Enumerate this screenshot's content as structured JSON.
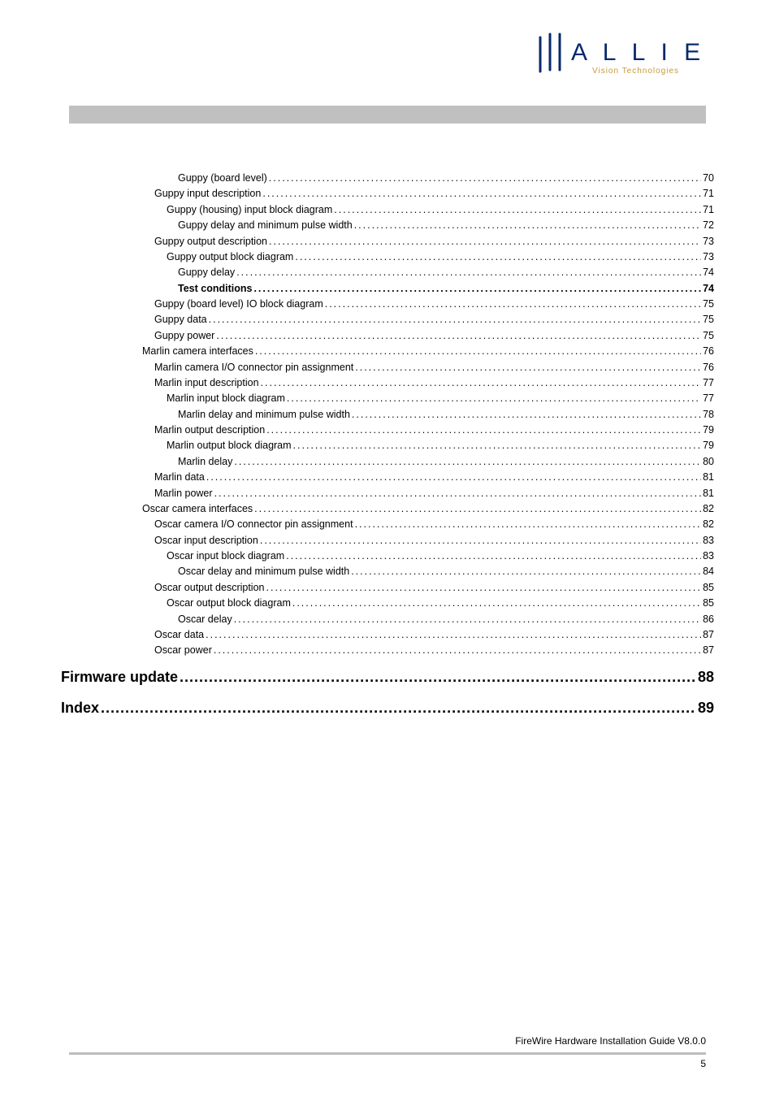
{
  "logo": {
    "brand_top": "A L L I E D",
    "brand_bottom": "Vision Technologies",
    "stroke_color": "#0a2a6b",
    "accent_color": "#c59a3a"
  },
  "toc": {
    "entries": [
      {
        "level": 4,
        "label": "Guppy (board level)",
        "page": "70"
      },
      {
        "level": 2,
        "label": "Guppy input description",
        "page": "71"
      },
      {
        "level": 3,
        "label": "Guppy (housing) input block diagram",
        "page": "71"
      },
      {
        "level": 4,
        "label": "Guppy delay and minimum pulse width",
        "page": "72"
      },
      {
        "level": 2,
        "label": "Guppy output description",
        "page": "73"
      },
      {
        "level": 3,
        "label": "Guppy output block diagram",
        "page": "73"
      },
      {
        "level": 4,
        "label": "Guppy delay",
        "page": "74"
      },
      {
        "level": 4,
        "label": "Test conditions",
        "page": "74",
        "bold": true
      },
      {
        "level": 2,
        "label": "Guppy (board level) IO block diagram",
        "page": "75"
      },
      {
        "level": 2,
        "label": "Guppy data",
        "page": "75"
      },
      {
        "level": 2,
        "label": "Guppy power",
        "page": "75"
      },
      {
        "level": 1,
        "label": "Marlin camera interfaces",
        "page": "76"
      },
      {
        "level": 2,
        "label": "Marlin camera I/O connector pin assignment",
        "page": "76"
      },
      {
        "level": 2,
        "label": "Marlin input description",
        "page": "77"
      },
      {
        "level": 3,
        "label": "Marlin input block diagram",
        "page": "77"
      },
      {
        "level": 4,
        "label": "Marlin delay and minimum pulse width",
        "page": "78"
      },
      {
        "level": 2,
        "label": "Marlin output description",
        "page": "79"
      },
      {
        "level": 3,
        "label": "Marlin output block diagram",
        "page": "79"
      },
      {
        "level": 4,
        "label": "Marlin delay",
        "page": "80"
      },
      {
        "level": 2,
        "label": "Marlin data",
        "page": "81"
      },
      {
        "level": 2,
        "label": "Marlin power",
        "page": "81"
      },
      {
        "level": 1,
        "label": "Oscar camera interfaces",
        "page": "82"
      },
      {
        "level": 2,
        "label": "Oscar camera I/O connector pin assignment",
        "page": "82"
      },
      {
        "level": 2,
        "label": "Oscar input description",
        "page": "83"
      },
      {
        "level": 3,
        "label": "Oscar input block diagram",
        "page": "83"
      },
      {
        "level": 4,
        "label": "Oscar delay and minimum pulse width",
        "page": "84"
      },
      {
        "level": 2,
        "label": "Oscar output description",
        "page": "85"
      },
      {
        "level": 3,
        "label": "Oscar output block diagram",
        "page": "85"
      },
      {
        "level": 4,
        "label": "Oscar delay",
        "page": "86"
      },
      {
        "level": 2,
        "label": "Oscar data",
        "page": "87"
      },
      {
        "level": 2,
        "label": "Oscar power",
        "page": "87"
      }
    ],
    "headings": [
      {
        "label": "Firmware update",
        "page": "88"
      },
      {
        "label": "Index",
        "page": "89"
      }
    ]
  },
  "footer": {
    "title": "FireWire Hardware Installation Guide V8.0.0",
    "page_number": "5"
  }
}
